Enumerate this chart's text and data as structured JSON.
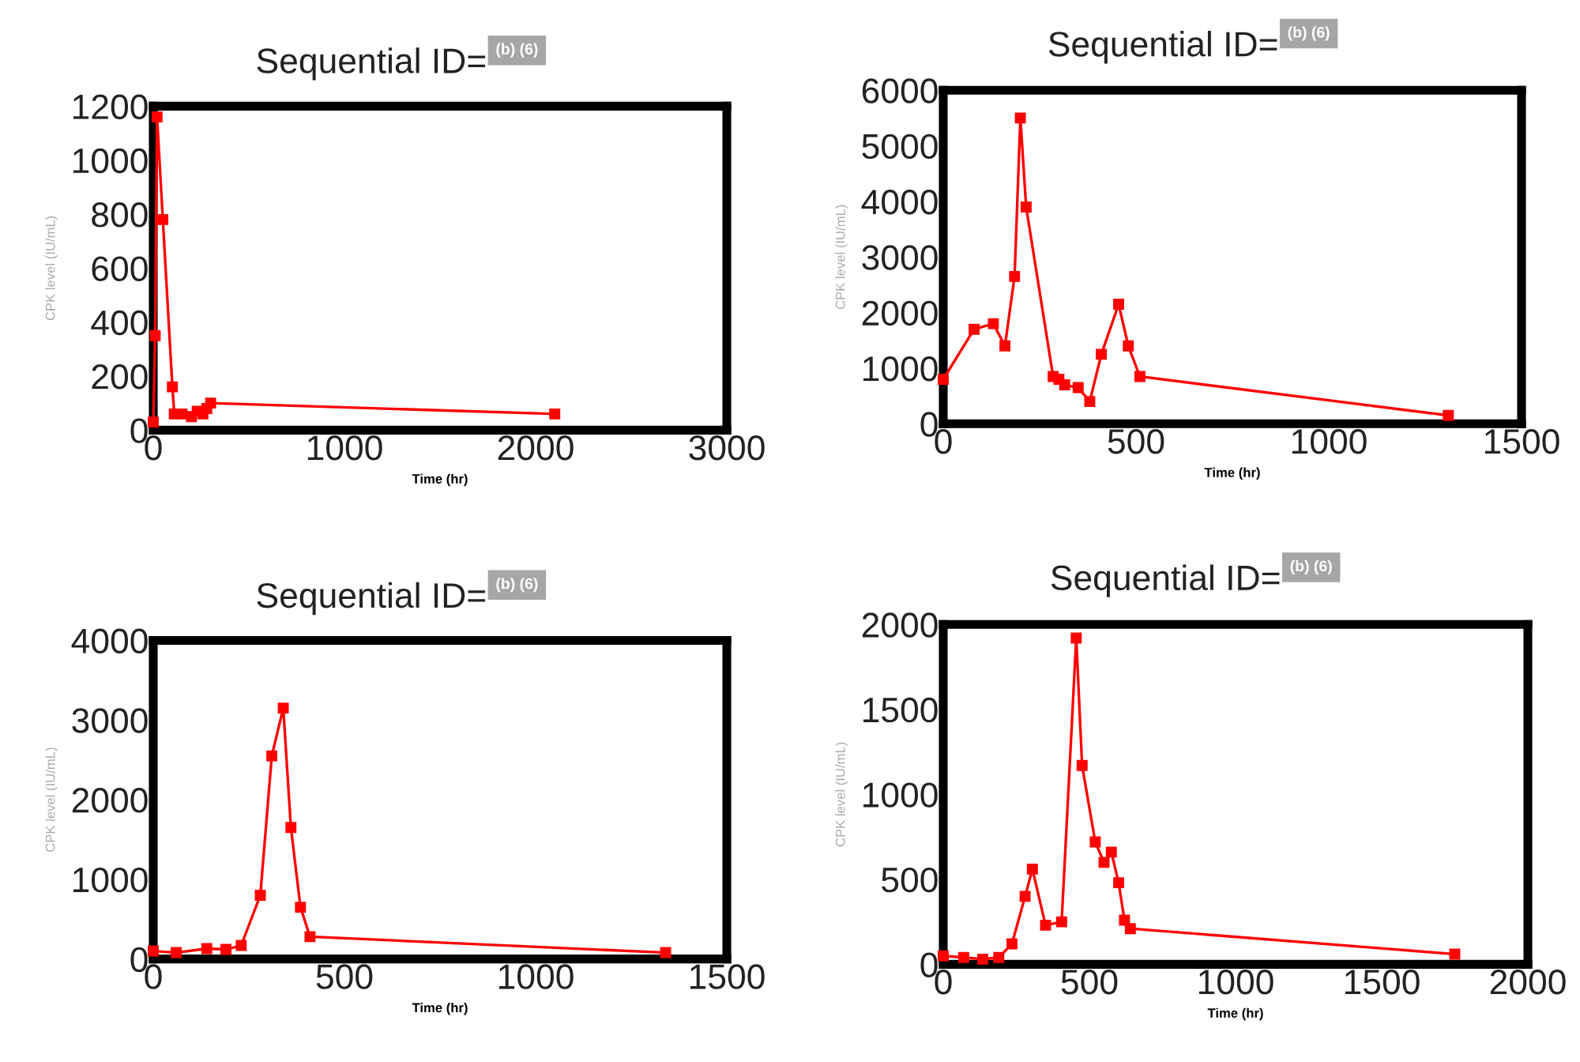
{
  "chart_data": [
    {
      "type": "line",
      "title": "Sequential ID=",
      "annotations": [
        "(b) (6)"
      ],
      "xlabel": "Time (hr)",
      "ylabel": "CPK level (IU/mL)",
      "marker": "square",
      "line_style": "solid",
      "grid": false,
      "legend": false,
      "xlim": [
        0,
        3000
      ],
      "xticks": [
        0,
        1000,
        2000,
        3000
      ],
      "ylim": [
        0,
        1200
      ],
      "yticks": [
        0,
        200,
        400,
        600,
        800,
        1000,
        1200
      ],
      "series": [
        {
          "color": "#ff0000",
          "x": [
            0,
            10,
            20,
            50,
            100,
            110,
            150,
            200,
            230,
            260,
            280,
            300,
            2100
          ],
          "values": [
            30,
            350,
            1160,
            780,
            160,
            60,
            60,
            50,
            70,
            60,
            80,
            100,
            60
          ]
        }
      ]
    },
    {
      "type": "line",
      "title": "Sequential ID=",
      "annotations": [
        "(b) (6)"
      ],
      "xlabel": "Time (hr)",
      "ylabel": "CPK level (IU/mL)",
      "marker": "square",
      "line_style": "solid",
      "grid": false,
      "legend": false,
      "xlim": [
        0,
        1500
      ],
      "xticks": [
        0,
        500,
        1000,
        1500
      ],
      "ylim": [
        0,
        6000
      ],
      "yticks": [
        0,
        1000,
        2000,
        3000,
        4000,
        5000,
        6000
      ],
      "series": [
        {
          "color": "#ff0000",
          "x": [
            0,
            80,
            130,
            160,
            185,
            200,
            215,
            285,
            300,
            315,
            350,
            380,
            410,
            455,
            480,
            510,
            1310
          ],
          "values": [
            800,
            1700,
            1800,
            1400,
            2650,
            5500,
            3900,
            850,
            800,
            700,
            650,
            400,
            1250,
            2150,
            1400,
            850,
            150
          ]
        }
      ]
    },
    {
      "type": "line",
      "title": "Sequential ID=",
      "annotations": [
        "(b) (6)"
      ],
      "xlabel": "Time (hr)",
      "ylabel": "CPK level (IU/mL)",
      "marker": "square",
      "line_style": "solid",
      "grid": false,
      "legend": false,
      "xlim": [
        0,
        1500
      ],
      "xticks": [
        0,
        500,
        1000,
        1500
      ],
      "ylim": [
        0,
        4000
      ],
      "yticks": [
        0,
        1000,
        2000,
        3000,
        4000
      ],
      "series": [
        {
          "color": "#ff0000",
          "x": [
            0,
            60,
            140,
            190,
            230,
            280,
            310,
            340,
            360,
            385,
            410,
            1340
          ],
          "values": [
            100,
            80,
            130,
            120,
            170,
            800,
            2550,
            3150,
            1650,
            650,
            280,
            80
          ]
        }
      ]
    },
    {
      "type": "line",
      "title": "Sequential ID=",
      "annotations": [
        "(b) (6)"
      ],
      "xlabel": "Time (hr)",
      "ylabel": "CPK level (IU/mL)",
      "marker": "square",
      "line_style": "solid",
      "grid": false,
      "legend": false,
      "xlim": [
        0,
        2000
      ],
      "xticks": [
        0,
        500,
        1000,
        1500,
        2000
      ],
      "ylim": [
        0,
        2000
      ],
      "yticks": [
        0,
        500,
        1000,
        1500,
        2000
      ],
      "series": [
        {
          "color": "#ff0000",
          "x": [
            0,
            70,
            135,
            190,
            235,
            280,
            305,
            350,
            405,
            455,
            475,
            520,
            550,
            575,
            600,
            620,
            640,
            1750
          ],
          "values": [
            50,
            40,
            30,
            40,
            120,
            400,
            560,
            230,
            250,
            1920,
            1170,
            720,
            600,
            660,
            480,
            260,
            210,
            60
          ]
        }
      ]
    }
  ]
}
